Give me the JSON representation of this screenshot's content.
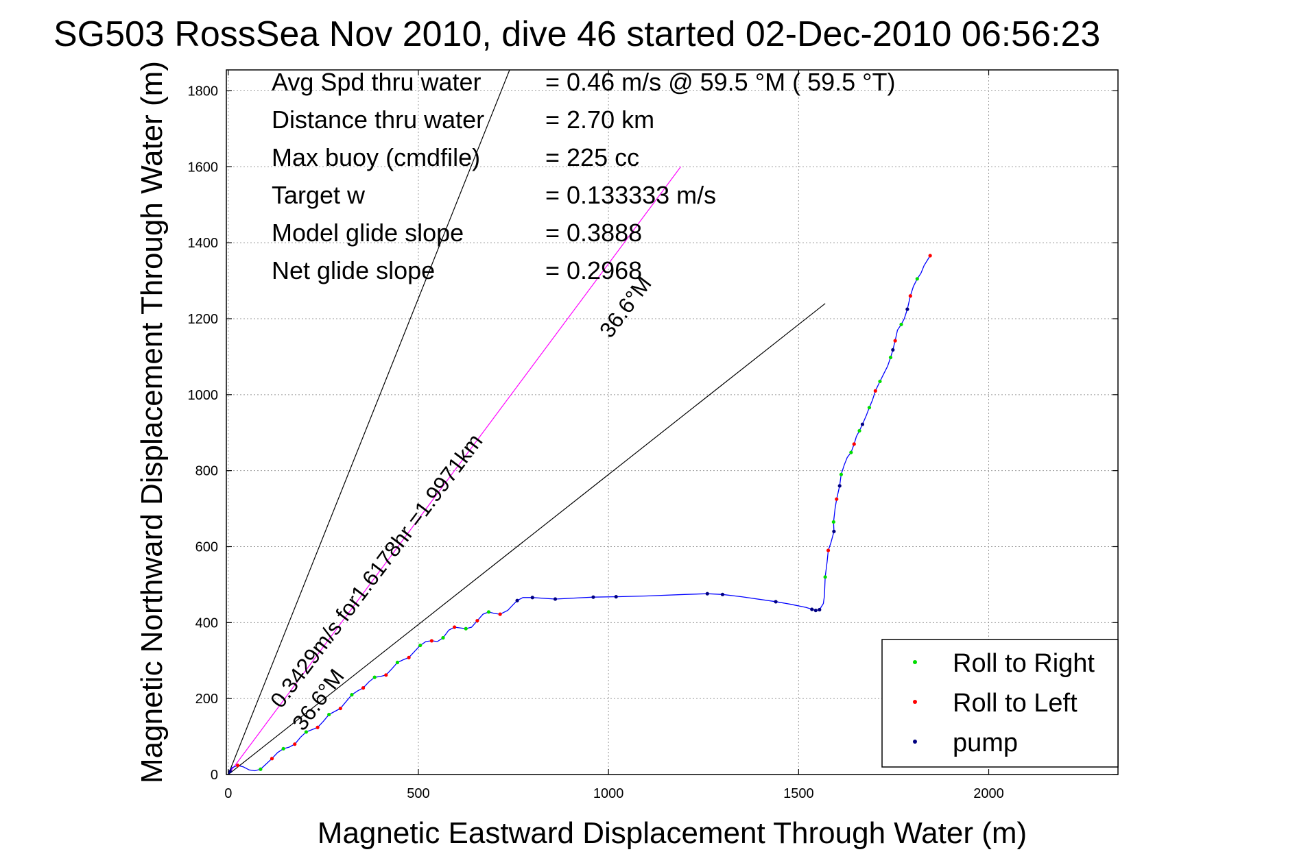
{
  "chart_data": {
    "type": "line",
    "title": "SG503 RossSea Nov 2010, dive 46 started 02-Dec-2010 06:56:23",
    "xlabel": "Magnetic Eastward Displacement Through Water (m)",
    "ylabel": "Magnetic Northward Displacement Through Water (m)",
    "xlim": [
      -5,
      2340
    ],
    "ylim": [
      0,
      1855
    ],
    "xticks": [
      0,
      500,
      1000,
      1500,
      2000
    ],
    "yticks": [
      0,
      200,
      400,
      600,
      800,
      1000,
      1200,
      1400,
      1600,
      1800
    ],
    "grid": true,
    "legend_position": "bottom-right",
    "stats": [
      {
        "label": "Avg Spd thru water",
        "value": "=  0.46 m/s @  59.5 °M ( 59.5 °T)"
      },
      {
        "label": "Distance thru water",
        "value": "=  2.70 km"
      },
      {
        "label": "Max buoy (cmdfile)",
        "value": "= 225 cc"
      },
      {
        "label": "Target w",
        "value": "= 0.133333 m/s"
      },
      {
        "label": "Model glide slope",
        "value": "= 0.3888"
      },
      {
        "label": "Net glide slope",
        "value": "= 0.2968"
      }
    ],
    "annotations": {
      "track_speed": "0.3429m/s for1.6178hr =1.9971km",
      "heading_lower": "36.6°M",
      "heading_upper": "36.6°M"
    },
    "reference_lines": [
      {
        "name": "target-line",
        "color": "#ff00ff",
        "points": [
          [
            0,
            0
          ],
          [
            1190,
            1600
          ]
        ]
      },
      {
        "name": "left-bound",
        "color": "#000000",
        "points": [
          [
            0,
            0
          ],
          [
            740,
            1855
          ]
        ]
      },
      {
        "name": "right-bound",
        "color": "#000000",
        "points": [
          [
            0,
            0
          ],
          [
            1570,
            1240
          ]
        ]
      }
    ],
    "track": {
      "color": "#0000ff",
      "points": [
        [
          0,
          0
        ],
        [
          10,
          18
        ],
        [
          25,
          24
        ],
        [
          40,
          20
        ],
        [
          55,
          12
        ],
        [
          70,
          10
        ],
        [
          85,
          14
        ],
        [
          100,
          28
        ],
        [
          115,
          42
        ],
        [
          130,
          58
        ],
        [
          145,
          68
        ],
        [
          160,
          72
        ],
        [
          175,
          80
        ],
        [
          190,
          98
        ],
        [
          205,
          112
        ],
        [
          220,
          118
        ],
        [
          235,
          124
        ],
        [
          250,
          140
        ],
        [
          265,
          158
        ],
        [
          280,
          166
        ],
        [
          295,
          174
        ],
        [
          310,
          192
        ],
        [
          325,
          210
        ],
        [
          340,
          220
        ],
        [
          355,
          228
        ],
        [
          370,
          244
        ],
        [
          385,
          256
        ],
        [
          400,
          258
        ],
        [
          415,
          262
        ],
        [
          430,
          278
        ],
        [
          445,
          295
        ],
        [
          460,
          302
        ],
        [
          475,
          308
        ],
        [
          490,
          324
        ],
        [
          505,
          340
        ],
        [
          520,
          350
        ],
        [
          535,
          352
        ],
        [
          550,
          350
        ],
        [
          565,
          360
        ],
        [
          580,
          380
        ],
        [
          595,
          388
        ],
        [
          610,
          386
        ],
        [
          625,
          384
        ],
        [
          640,
          388
        ],
        [
          655,
          405
        ],
        [
          670,
          422
        ],
        [
          685,
          428
        ],
        [
          700,
          424
        ],
        [
          715,
          422
        ],
        [
          735,
          432
        ],
        [
          750,
          448
        ],
        [
          760,
          458
        ],
        [
          775,
          466
        ],
        [
          800,
          466
        ],
        [
          860,
          462
        ],
        [
          960,
          467
        ],
        [
          1020,
          468
        ],
        [
          1100,
          470
        ],
        [
          1200,
          474
        ],
        [
          1260,
          476
        ],
        [
          1300,
          474
        ],
        [
          1350,
          468
        ],
        [
          1440,
          455
        ],
        [
          1480,
          448
        ],
        [
          1520,
          440
        ],
        [
          1535,
          435
        ],
        [
          1545,
          432
        ],
        [
          1555,
          434
        ],
        [
          1565,
          450
        ],
        [
          1568,
          470
        ],
        [
          1570,
          520
        ],
        [
          1575,
          560
        ],
        [
          1578,
          590
        ],
        [
          1585,
          610
        ],
        [
          1593,
          640
        ],
        [
          1592,
          665
        ],
        [
          1596,
          700
        ],
        [
          1600,
          725
        ],
        [
          1608,
          760
        ],
        [
          1612,
          790
        ],
        [
          1620,
          815
        ],
        [
          1628,
          835
        ],
        [
          1638,
          848
        ],
        [
          1646,
          870
        ],
        [
          1652,
          890
        ],
        [
          1660,
          905
        ],
        [
          1668,
          922
        ],
        [
          1678,
          945
        ],
        [
          1686,
          966
        ],
        [
          1694,
          985
        ],
        [
          1702,
          1010
        ],
        [
          1714,
          1035
        ],
        [
          1724,
          1055
        ],
        [
          1734,
          1075
        ],
        [
          1742,
          1098
        ],
        [
          1748,
          1118
        ],
        [
          1754,
          1142
        ],
        [
          1760,
          1170
        ],
        [
          1770,
          1185
        ],
        [
          1778,
          1200
        ],
        [
          1786,
          1225
        ],
        [
          1794,
          1260
        ],
        [
          1802,
          1285
        ],
        [
          1812,
          1305
        ],
        [
          1822,
          1320
        ],
        [
          1830,
          1340
        ],
        [
          1840,
          1356
        ],
        [
          1846,
          1366
        ]
      ],
      "markers": [
        {
          "name": "Roll to Right",
          "color": "#00dd00",
          "points": [
            [
              85,
              14
            ],
            [
              145,
              68
            ],
            [
              205,
              112
            ],
            [
              265,
              158
            ],
            [
              325,
              210
            ],
            [
              385,
              256
            ],
            [
              445,
              295
            ],
            [
              505,
              340
            ],
            [
              565,
              360
            ],
            [
              625,
              384
            ],
            [
              685,
              428
            ],
            [
              1570,
              520
            ],
            [
              1592,
              665
            ],
            [
              1612,
              790
            ],
            [
              1638,
              848
            ],
            [
              1660,
              905
            ],
            [
              1686,
              966
            ],
            [
              1714,
              1035
            ],
            [
              1742,
              1098
            ],
            [
              1770,
              1185
            ],
            [
              1812,
              1305
            ]
          ]
        },
        {
          "name": "Roll to Left",
          "color": "#ff0000",
          "points": [
            [
              25,
              24
            ],
            [
              115,
              42
            ],
            [
              175,
              80
            ],
            [
              235,
              124
            ],
            [
              295,
              174
            ],
            [
              355,
              228
            ],
            [
              415,
              262
            ],
            [
              475,
              308
            ],
            [
              535,
              352
            ],
            [
              595,
              388
            ],
            [
              655,
              405
            ],
            [
              715,
              422
            ],
            [
              1578,
              590
            ],
            [
              1600,
              725
            ],
            [
              1646,
              870
            ],
            [
              1702,
              1010
            ],
            [
              1754,
              1142
            ],
            [
              1794,
              1260
            ],
            [
              1846,
              1366
            ]
          ]
        },
        {
          "name": "pump",
          "color": "#000080",
          "points": [
            [
              5,
              8
            ],
            [
              760,
              458
            ],
            [
              800,
              466
            ],
            [
              860,
              462
            ],
            [
              960,
              467
            ],
            [
              1020,
              468
            ],
            [
              1260,
              476
            ],
            [
              1300,
              474
            ],
            [
              1440,
              455
            ],
            [
              1535,
              435
            ],
            [
              1545,
              432
            ],
            [
              1555,
              434
            ],
            [
              1593,
              640
            ],
            [
              1608,
              760
            ],
            [
              1668,
              922
            ],
            [
              1748,
              1118
            ],
            [
              1786,
              1225
            ]
          ]
        }
      ]
    },
    "legend": [
      {
        "label": "Roll to Right",
        "color": "#00dd00"
      },
      {
        "label": "Roll to Left",
        "color": "#ff0000"
      },
      {
        "label": "pump",
        "color": "#000080"
      }
    ]
  }
}
